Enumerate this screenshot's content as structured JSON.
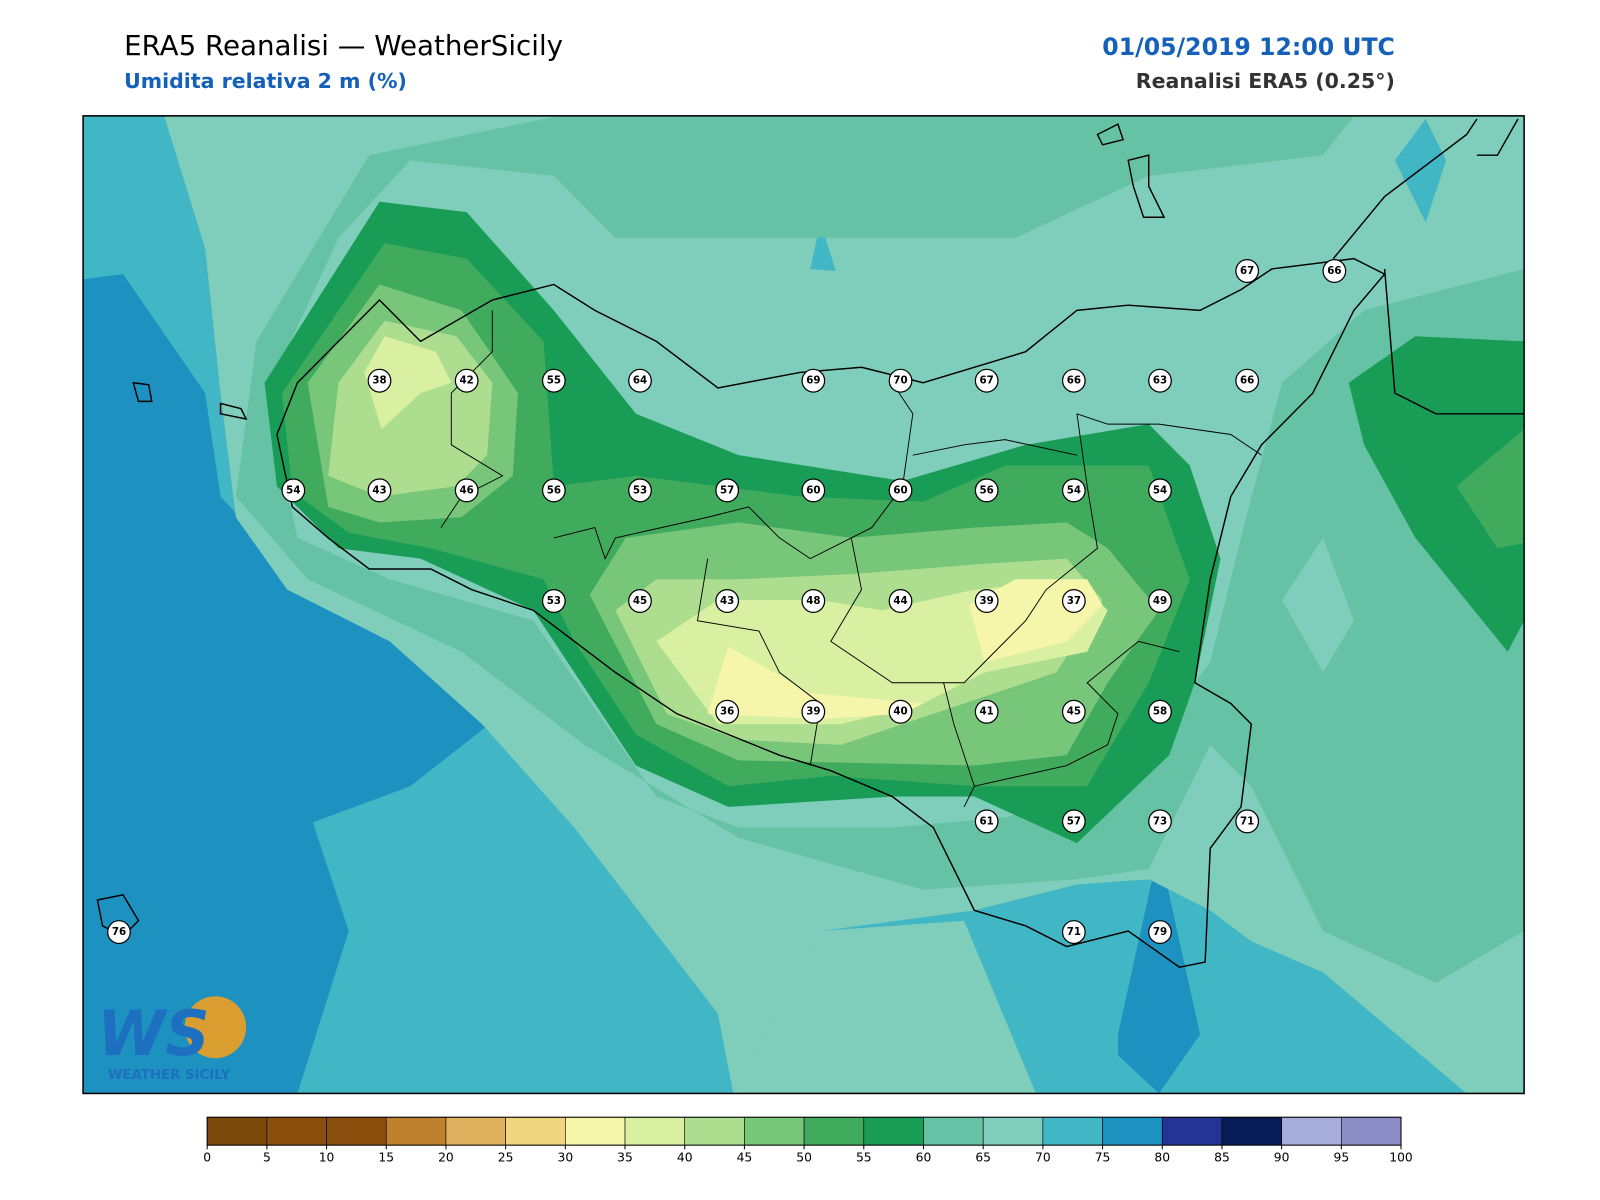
{
  "header": {
    "title": "ERA5 Reanalisi — WeatherSicily",
    "subtitle": "Umidita relativa 2 m (%)",
    "datetime": "01/05/2019 12:00 UTC",
    "source": "Reanalisi ERA5 (0.25°)"
  },
  "stations": [
    67,
    66,
    38,
    42,
    55,
    64,
    69,
    70,
    67,
    66,
    63,
    66,
    54,
    43,
    46,
    56,
    53,
    57,
    60,
    60,
    56,
    54,
    54,
    53,
    45,
    43,
    48,
    44,
    39,
    37,
    49,
    36,
    39,
    40,
    41,
    45,
    58,
    61,
    57,
    73,
    71,
    76,
    71,
    79
  ],
  "colorbar": {
    "ticks": [
      0,
      5,
      10,
      15,
      20,
      25,
      30,
      35,
      40,
      45,
      50,
      55,
      60,
      65,
      70,
      75,
      80,
      85,
      90,
      95,
      100
    ],
    "colors": [
      "#7b4a0b",
      "#8a4f0c",
      "#8a4f0c",
      "#bf812d",
      "#dfb15f",
      "#f0d57f",
      "#f6f6aa",
      "#d9f0a3",
      "#addd8e",
      "#78c679",
      "#41ab5d",
      "#199c55",
      "#66c2a4",
      "#7fcdbb",
      "#41b6c4",
      "#1d91c0",
      "#253494",
      "#081d58",
      "#a6add9",
      "#8c8cc6"
    ]
  },
  "logo": {
    "mark": "WS",
    "name": "WEATHER SICILY"
  }
}
